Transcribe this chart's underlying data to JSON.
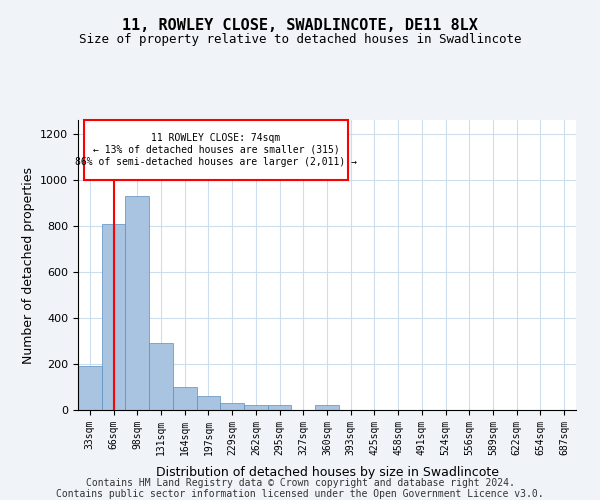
{
  "title": "11, ROWLEY CLOSE, SWADLINCOTE, DE11 8LX",
  "subtitle": "Size of property relative to detached houses in Swadlincote",
  "xlabel": "Distribution of detached houses by size in Swadlincote",
  "ylabel": "Number of detached properties",
  "bins": [
    "33sqm",
    "66sqm",
    "98sqm",
    "131sqm",
    "164sqm",
    "197sqm",
    "229sqm",
    "262sqm",
    "295sqm",
    "327sqm",
    "360sqm",
    "393sqm",
    "425sqm",
    "458sqm",
    "491sqm",
    "524sqm",
    "556sqm",
    "589sqm",
    "622sqm",
    "654sqm",
    "687sqm"
  ],
  "bar_heights": [
    190,
    810,
    930,
    290,
    100,
    60,
    30,
    20,
    20,
    0,
    20,
    0,
    0,
    0,
    0,
    0,
    0,
    0,
    0,
    0,
    0
  ],
  "bar_color": "#a8c4e0",
  "bar_edge_color": "#5a8fc0",
  "property_line_x": 1.0,
  "property_line_color": "red",
  "annotation_text": "11 ROWLEY CLOSE: 74sqm\n← 13% of detached houses are smaller (315)\n86% of semi-detached houses are larger (2,011) →",
  "annotation_box_color": "white",
  "annotation_box_edge_color": "red",
  "ylim": [
    0,
    1260
  ],
  "yticks": [
    0,
    200,
    400,
    600,
    800,
    1000,
    1200
  ],
  "footer_line1": "Contains HM Land Registry data © Crown copyright and database right 2024.",
  "footer_line2": "Contains public sector information licensed under the Open Government Licence v3.0.",
  "background_color": "#f0f4f8",
  "plot_background_color": "white",
  "grid_color": "#ccddee",
  "title_fontsize": 11,
  "subtitle_fontsize": 9,
  "xlabel_fontsize": 9,
  "ylabel_fontsize": 9,
  "footer_fontsize": 7
}
